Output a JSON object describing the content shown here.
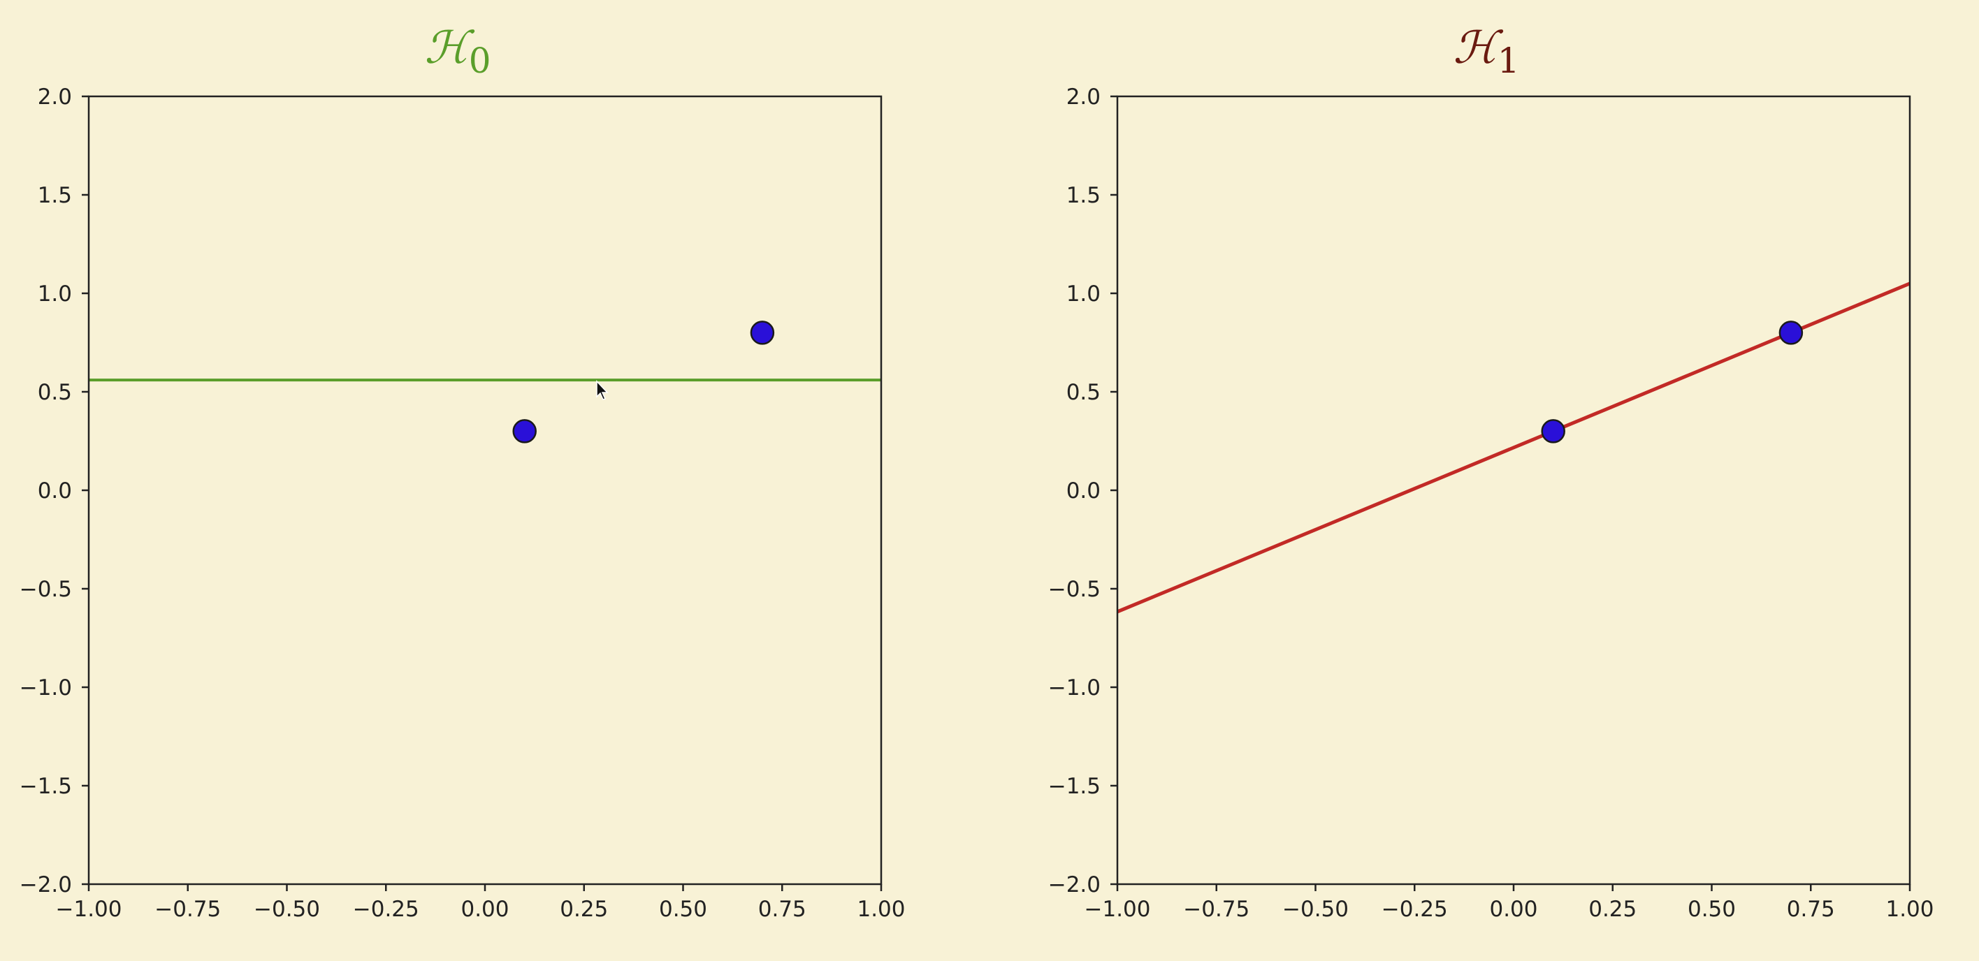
{
  "background": "#f8f2d6",
  "chart_data": [
    {
      "type": "scatter",
      "title": {
        "main": "ℋ",
        "sub": "0",
        "color": "#5a9e2a"
      },
      "xlim": [
        -1.0,
        1.0
      ],
      "ylim": [
        -2.0,
        2.0
      ],
      "xticks": [
        "−1.00",
        "−0.75",
        "−0.50",
        "−0.25",
        "0.00",
        "0.25",
        "0.50",
        "0.75",
        "1.00"
      ],
      "yticks": [
        "2.0",
        "1.5",
        "1.0",
        "0.5",
        "0.0",
        "−0.5",
        "−1.0",
        "−1.5",
        "−2.0"
      ],
      "grid": false,
      "points": [
        {
          "x": 0.1,
          "y": 0.3
        },
        {
          "x": 0.7,
          "y": 0.8
        }
      ],
      "point_color": "#2a10d8",
      "line": {
        "slope": 0.0,
        "intercept": 0.56,
        "color": "#5a9e2a"
      }
    },
    {
      "type": "scatter",
      "title": {
        "main": "ℋ",
        "sub": "1",
        "color": "#6a1a10"
      },
      "xlim": [
        -1.0,
        1.0
      ],
      "ylim": [
        -2.0,
        2.0
      ],
      "xticks": [
        "−1.00",
        "−0.75",
        "−0.50",
        "−0.25",
        "0.00",
        "0.25",
        "0.50",
        "0.75",
        "1.00"
      ],
      "yticks": [
        "2.0",
        "1.5",
        "1.0",
        "0.5",
        "0.0",
        "−0.5",
        "−1.0",
        "−1.5",
        "−2.0"
      ],
      "grid": false,
      "points": [
        {
          "x": 0.1,
          "y": 0.3
        },
        {
          "x": 0.7,
          "y": 0.8
        }
      ],
      "point_color": "#2a10d8",
      "line": {
        "slope": 0.8333,
        "intercept": 0.2167,
        "color": "#c22a26"
      }
    }
  ],
  "icons": {
    "cursor": "mouse-pointer-icon"
  }
}
